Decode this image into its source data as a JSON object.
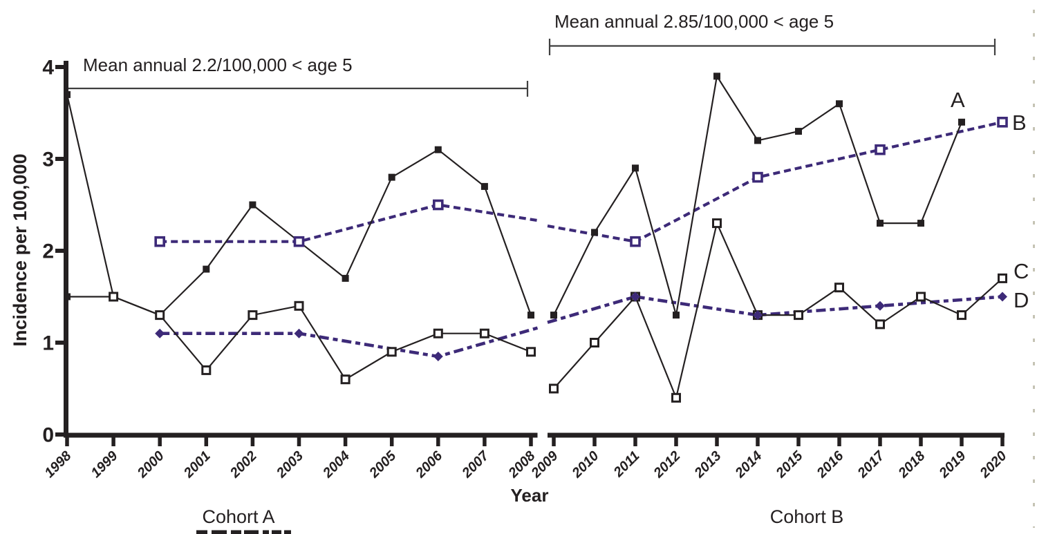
{
  "figure": {
    "colors": {
      "black": "#242021",
      "purple": "#3d2a78",
      "bracket": "#3f3f3f",
      "edge_artifact": "#c5c3b4"
    },
    "y_axis": {
      "title": "Incidence per 100,000",
      "tick_labels": [
        "0",
        "1",
        "2",
        "3",
        "4"
      ],
      "min": 0,
      "max": 4
    },
    "x_axis": {
      "title": "Year"
    },
    "panel_labels": {
      "left": "Cohort A",
      "right": "Cohort B"
    }
  },
  "chart_data": {
    "type": "line",
    "title": "",
    "xlabel": "Year",
    "ylabel": "Incidence per 100,000",
    "ylim": [
      0,
      4
    ],
    "y_ticks": [
      0,
      1,
      2,
      3,
      4
    ],
    "grid": false,
    "legend_position": "inline-right-letters",
    "annotations": [
      {
        "id": "left-bracket",
        "text": "Mean annual 2.2/100,000 < age 5"
      },
      {
        "id": "right-bracket",
        "text": "Mean annual 2.85/100,000 < age 5"
      }
    ],
    "series_labels": [
      {
        "id": "A",
        "text": "A"
      },
      {
        "id": "B",
        "text": "B"
      },
      {
        "id": "C",
        "text": "C"
      },
      {
        "id": "D",
        "text": "D"
      }
    ],
    "panels": [
      {
        "label": "Cohort A",
        "years": [
          1998,
          1999,
          2000,
          2001,
          2002,
          2003,
          2004,
          2005,
          2006,
          2007,
          2008
        ],
        "series": [
          {
            "id": "D",
            "color": "purple",
            "line": "dash-dot",
            "marker": "filled-diamond-purple",
            "points": [
              [
                2000,
                1.1
              ],
              [
                2003,
                1.1
              ],
              [
                2006,
                0.85
              ]
            ],
            "exit_edge_value": 1.16
          },
          {
            "id": "B",
            "color": "purple",
            "line": "dashed",
            "marker": "open-square-purple",
            "points": [
              [
                2000,
                2.1
              ],
              [
                2003,
                2.1
              ],
              [
                2006,
                2.5
              ]
            ],
            "exit_edge_value": 2.33
          },
          {
            "id": "C",
            "color": "black",
            "line": "solid",
            "marker": "open-square",
            "points": [
              [
                1998,
                1.5
              ],
              [
                1999,
                1.5
              ],
              [
                2000,
                1.3
              ],
              [
                2001,
                0.7
              ],
              [
                2002,
                1.3
              ],
              [
                2003,
                1.4
              ],
              [
                2004,
                0.6
              ],
              [
                2005,
                0.9
              ],
              [
                2006,
                1.1
              ],
              [
                2007,
                1.1
              ],
              [
                2008,
                0.9
              ]
            ],
            "filled_marker_years": [
              1998
            ]
          },
          {
            "id": "A",
            "color": "black",
            "line": "solid",
            "marker": "filled-square",
            "points": [
              [
                1998,
                3.7
              ],
              [
                1999,
                1.5
              ],
              [
                2000,
                1.3
              ],
              [
                2001,
                1.8
              ],
              [
                2002,
                2.5
              ],
              [
                2003,
                2.1
              ],
              [
                2004,
                1.7
              ],
              [
                2005,
                2.8
              ],
              [
                2006,
                3.1
              ],
              [
                2007,
                2.7
              ],
              [
                2008,
                1.3
              ]
            ],
            "skip_marker_years": [
              1999,
              2000
            ]
          }
        ]
      },
      {
        "label": "Cohort B",
        "years": [
          2009,
          2010,
          2011,
          2012,
          2013,
          2014,
          2015,
          2016,
          2017,
          2018,
          2019,
          2020
        ],
        "series": [
          {
            "id": "D",
            "color": "purple",
            "line": "dash-dot",
            "marker": "filled-diamond-purple",
            "entry_edge_value": 1.22,
            "points": [
              [
                2011,
                1.5
              ],
              [
                2014,
                1.3
              ],
              [
                2017,
                1.4
              ],
              [
                2020,
                1.5
              ]
            ]
          },
          {
            "id": "B",
            "color": "purple",
            "line": "dashed",
            "marker": "open-square-purple",
            "entry_edge_value": 2.27,
            "points": [
              [
                2011,
                2.1
              ],
              [
                2014,
                2.8
              ],
              [
                2017,
                3.1
              ],
              [
                2020,
                3.4
              ]
            ]
          },
          {
            "id": "C",
            "color": "black",
            "line": "solid",
            "marker": "open-square",
            "points": [
              [
                2009,
                0.5
              ],
              [
                2010,
                1.0
              ],
              [
                2011,
                1.5
              ],
              [
                2012,
                0.4
              ],
              [
                2013,
                2.3
              ],
              [
                2014,
                1.3
              ],
              [
                2015,
                1.3
              ],
              [
                2016,
                1.6
              ],
              [
                2017,
                1.2
              ],
              [
                2018,
                1.5
              ],
              [
                2019,
                1.3
              ],
              [
                2020,
                1.7
              ]
            ]
          },
          {
            "id": "A",
            "color": "black",
            "line": "solid",
            "marker": "filled-square",
            "points": [
              [
                2009,
                1.3
              ],
              [
                2010,
                2.2
              ],
              [
                2011,
                2.9
              ],
              [
                2012,
                1.3
              ],
              [
                2013,
                3.9
              ],
              [
                2014,
                3.2
              ],
              [
                2015,
                3.3
              ],
              [
                2016,
                3.6
              ],
              [
                2017,
                2.3
              ],
              [
                2018,
                2.3
              ],
              [
                2019,
                3.4
              ]
            ]
          }
        ]
      }
    ]
  }
}
